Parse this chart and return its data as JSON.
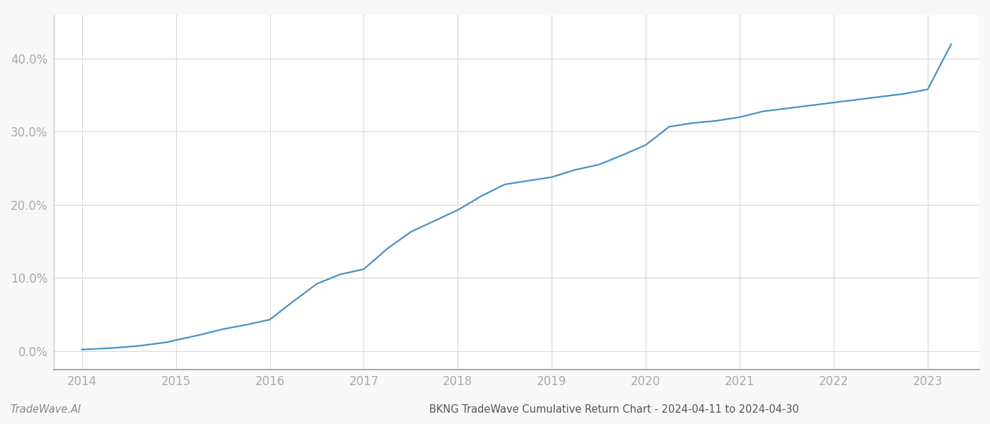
{
  "x_values": [
    2014.0,
    2014.3,
    2014.6,
    2014.9,
    2015.0,
    2015.25,
    2015.5,
    2015.75,
    2016.0,
    2016.25,
    2016.5,
    2016.75,
    2017.0,
    2017.25,
    2017.5,
    2017.75,
    2018.0,
    2018.25,
    2018.5,
    2018.75,
    2019.0,
    2019.25,
    2019.5,
    2019.75,
    2020.0,
    2020.25,
    2020.5,
    2020.75,
    2021.0,
    2021.25,
    2021.5,
    2021.75,
    2022.0,
    2022.25,
    2022.5,
    2022.75,
    2023.0,
    2023.25
  ],
  "y_values": [
    0.002,
    0.004,
    0.007,
    0.012,
    0.015,
    0.022,
    0.03,
    0.036,
    0.043,
    0.068,
    0.092,
    0.105,
    0.112,
    0.14,
    0.163,
    0.178,
    0.193,
    0.212,
    0.228,
    0.233,
    0.238,
    0.248,
    0.255,
    0.268,
    0.282,
    0.307,
    0.312,
    0.315,
    0.32,
    0.328,
    0.332,
    0.336,
    0.34,
    0.344,
    0.348,
    0.352,
    0.358,
    0.42
  ],
  "line_color": "#4a90c4",
  "line_width": 1.6,
  "background_color": "#f8f8f8",
  "plot_bg_color": "#ffffff",
  "grid_color": "#d8d8d8",
  "tick_color": "#aaaaaa",
  "spine_color": "#999999",
  "bottom_label": "BKNG TradeWave Cumulative Return Chart - 2024-04-11 to 2024-04-30",
  "watermark": "TradeWave.AI",
  "x_tick_labels": [
    "2014",
    "2015",
    "2016",
    "2017",
    "2018",
    "2019",
    "2020",
    "2021",
    "2022",
    "2023"
  ],
  "x_tick_positions": [
    2014,
    2015,
    2016,
    2017,
    2018,
    2019,
    2020,
    2021,
    2022,
    2023
  ],
  "y_ticks": [
    0.0,
    0.1,
    0.2,
    0.3,
    0.4
  ],
  "y_tick_labels": [
    "0.0%",
    "10.0%",
    "20.0%",
    "30.0%",
    "40.0%"
  ],
  "ylim": [
    -0.025,
    0.46
  ],
  "xlim": [
    2013.7,
    2023.55
  ]
}
